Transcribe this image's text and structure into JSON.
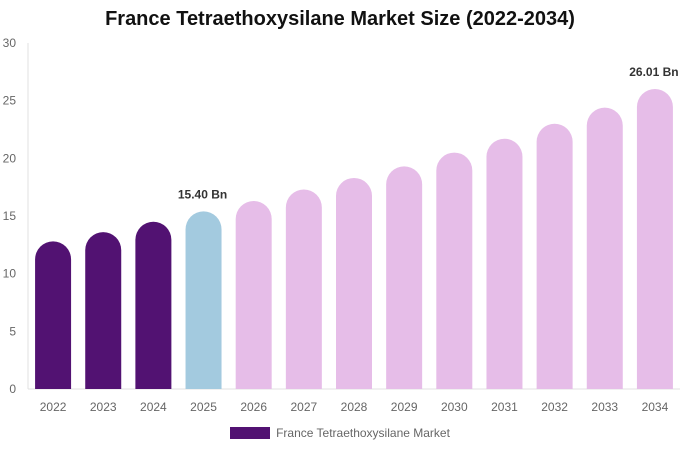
{
  "chart_data": {
    "type": "bar",
    "title": "France Tetraethoxysilane Market Size (2022-2034)",
    "categories": [
      "2022",
      "2023",
      "2024",
      "2025",
      "2026",
      "2027",
      "2028",
      "2029",
      "2030",
      "2031",
      "2032",
      "2033",
      "2034"
    ],
    "series": [
      {
        "name": "France Tetraethoxysilane Market",
        "values": [
          12.8,
          13.6,
          14.5,
          15.4,
          16.3,
          17.3,
          18.3,
          19.3,
          20.5,
          21.7,
          23.0,
          24.4,
          26.01
        ]
      }
    ],
    "data_labels": {
      "3": "15.40 Bn",
      "12": "26.01 Bn"
    },
    "ylim": [
      0,
      30
    ],
    "yticks": [
      0,
      5,
      10,
      15,
      20,
      25,
      30
    ],
    "xlabel": "",
    "ylabel": "",
    "grid": false,
    "legend_position": "bottom",
    "colors": {
      "historical": "#521272",
      "current": "#a3cadf",
      "forecast": "#e6bde8"
    }
  }
}
